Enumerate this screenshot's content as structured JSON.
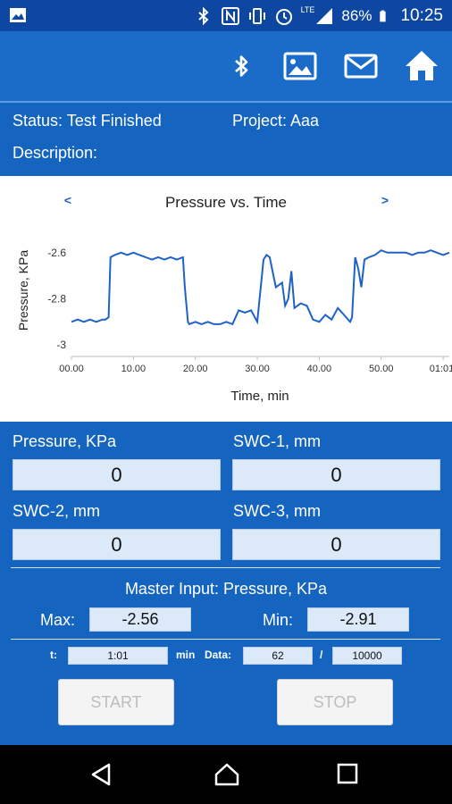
{
  "status_bar": {
    "battery": "86%",
    "time": "10:25",
    "network": "LTE",
    "icons": [
      "image-icon",
      "bluetooth-icon",
      "nfc-icon",
      "vibrate-icon",
      "alarm-icon",
      "signal-icon",
      "battery-icon"
    ]
  },
  "app_bar": {
    "icons": [
      "bluetooth-icon",
      "image-icon",
      "mail-icon",
      "home-icon"
    ]
  },
  "info": {
    "status": "Status: Test Finished",
    "project": "Project: Aaa",
    "description": "Description:"
  },
  "chart_data": {
    "type": "line",
    "title": "Pressure vs. Time",
    "prev_label": "<",
    "next_label": ">",
    "xlabel": "Time, min",
    "ylabel": "Pressure, KPa",
    "xlim": [
      0,
      61
    ],
    "ylim": [
      -3.05,
      -2.5
    ],
    "x_ticks": [
      0,
      10,
      20,
      30,
      40,
      50,
      60
    ],
    "x_tick_labels": [
      "00.00",
      "10.00",
      "20.00",
      "30.00",
      "40.00",
      "50.00",
      "01:01:"
    ],
    "y_ticks": [
      -2.6,
      -2.8,
      -3.0
    ],
    "y_tick_labels": [
      "-2.6",
      "-2.8",
      "-3"
    ],
    "grid": false,
    "color": "#1e62c8",
    "series": [
      {
        "x": [
          0,
          1,
          2,
          3,
          4,
          5,
          5.5,
          6,
          6.3,
          7,
          8,
          9,
          10,
          11,
          12,
          13,
          14,
          15,
          16,
          17,
          18,
          18.3,
          18.8,
          19,
          20,
          21,
          22,
          23,
          24,
          25,
          26,
          27,
          28,
          29,
          30,
          31,
          31.5,
          32,
          33,
          34,
          34.5,
          35,
          35.5,
          36,
          37,
          38,
          39,
          40,
          41,
          42,
          43,
          44,
          45,
          45.3,
          45.8,
          46.3,
          46.8,
          47.3,
          48,
          49,
          50,
          51,
          52,
          53,
          54,
          55,
          56,
          57,
          58,
          59,
          60,
          61
        ],
        "y": [
          -2.9,
          -2.89,
          -2.9,
          -2.89,
          -2.9,
          -2.89,
          -2.89,
          -2.88,
          -2.62,
          -2.61,
          -2.6,
          -2.61,
          -2.6,
          -2.61,
          -2.62,
          -2.63,
          -2.62,
          -2.63,
          -2.62,
          -2.63,
          -2.62,
          -2.75,
          -2.9,
          -2.91,
          -2.9,
          -2.91,
          -2.9,
          -2.91,
          -2.91,
          -2.9,
          -2.91,
          -2.85,
          -2.86,
          -2.85,
          -2.9,
          -2.63,
          -2.61,
          -2.62,
          -2.75,
          -2.73,
          -2.83,
          -2.8,
          -2.68,
          -2.84,
          -2.82,
          -2.83,
          -2.89,
          -2.9,
          -2.87,
          -2.89,
          -2.84,
          -2.87,
          -2.9,
          -2.88,
          -2.62,
          -2.67,
          -2.75,
          -2.63,
          -2.62,
          -2.61,
          -2.59,
          -2.6,
          -2.6,
          -2.6,
          -2.6,
          -2.61,
          -2.6,
          -2.6,
          -2.59,
          -2.6,
          -2.61,
          -2.6
        ]
      }
    ]
  },
  "fields": {
    "pressure_label": "Pressure, KPa",
    "pressure_value": "0",
    "swc1_label": "SWC-1, mm",
    "swc1_value": "0",
    "swc2_label": "SWC-2, mm",
    "swc2_value": "0",
    "swc3_label": "SWC-3, mm",
    "swc3_value": "0"
  },
  "master": {
    "title": "Master Input: Pressure, KPa",
    "max_label": "Max:",
    "max_value": "-2.56",
    "min_label": "Min:",
    "min_value": "-2.91"
  },
  "progress": {
    "t_label": "t:",
    "t_value": "1:01",
    "unit": "min",
    "data_label": "Data:",
    "data_value": "62",
    "separator": "/",
    "data_total": "10000"
  },
  "buttons": {
    "start": "START",
    "stop": "STOP"
  },
  "nav": {
    "icons": [
      "back-icon",
      "home-icon",
      "recents-icon"
    ]
  }
}
